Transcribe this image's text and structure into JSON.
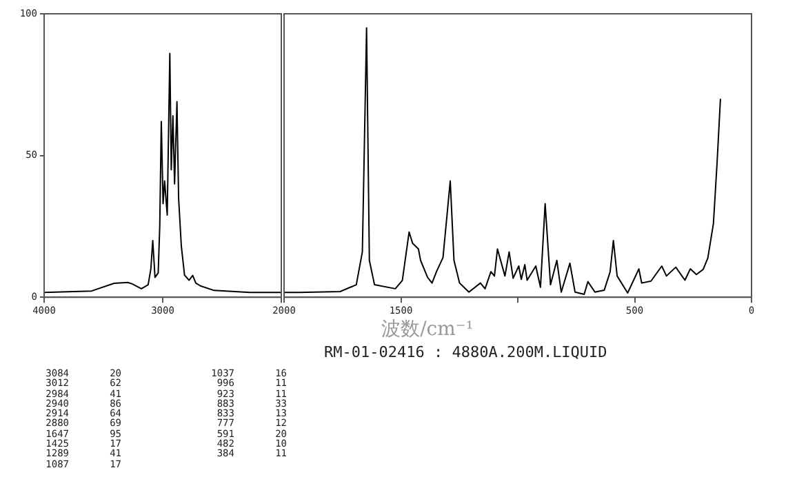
{
  "chart_data": [
    {
      "type": "line",
      "x": [
        4000,
        3600,
        3410,
        3295,
        3257,
        3180,
        3123,
        3100,
        3084,
        3065,
        3038,
        3025,
        3012,
        2997,
        2984,
        2962,
        2940,
        2928,
        2914,
        2900,
        2880,
        2866,
        2843,
        2816,
        2778,
        2747,
        2721,
        2682,
        2567,
        2264,
        2000
      ],
      "series": [
        {
          "color": "#000000",
          "values": [
            1.7,
            2.2,
            4.9,
            5.2,
            4.7,
            3,
            4.4,
            10,
            20,
            7,
            8.6,
            25,
            62,
            33,
            41,
            29,
            86,
            45,
            64,
            40,
            69,
            35,
            18,
            7.8,
            6,
            7.7,
            5,
            4,
            2.4,
            1.7,
            1.7
          ]
        }
      ],
      "xlim": [
        4000,
        2000
      ],
      "xticks": [
        4000,
        3000,
        {
          "value": 2000,
          "label": null
        }
      ],
      "ylim": [
        0,
        100
      ],
      "yticks": [
        0,
        50,
        100
      ],
      "grid": false,
      "legend": false,
      "marker": "none",
      "line_style": "solid"
    },
    {
      "type": "line",
      "xlabel": "波数/cm⁻¹",
      "annotations": [
        "RM-01-02416 : 4880A.200M.LIQUID",
        "3084 20",
        "3012 62",
        "2984 41",
        "2940 86",
        "2914 64",
        "2880 69",
        "1647 95",
        "1425 17",
        "1289 41",
        "1087 17",
        "1037 16",
        "996 11",
        "923 11",
        "883 33",
        "833 13",
        "777 12",
        "591 20",
        "482 10",
        "384 11"
      ],
      "x": [
        2000,
        1937,
        1760,
        1691,
        1665,
        1647,
        1635,
        1613,
        1524,
        1494,
        1465,
        1450,
        1425,
        1416,
        1386,
        1367,
        1347,
        1320,
        1289,
        1273,
        1249,
        1209,
        1160,
        1140,
        1115,
        1100,
        1087,
        1055,
        1037,
        1020,
        996,
        985,
        970,
        960,
        923,
        903,
        883,
        860,
        833,
        814,
        777,
        755,
        716,
        700,
        670,
        630,
        605,
        591,
        575,
        530,
        482,
        470,
        430,
        384,
        364,
        324,
        285,
        262,
        236,
        207,
        187,
        163,
        147,
        133
      ],
      "series": [
        {
          "color": "#000000",
          "values": [
            1.7,
            1.7,
            2,
            4.4,
            16,
            95,
            13,
            4.4,
            3,
            5.9,
            23,
            19,
            17,
            13,
            7,
            5,
            9.2,
            14,
            41,
            13,
            5,
            1.8,
            5,
            3,
            9,
            7.5,
            17,
            7.5,
            16,
            6.7,
            11,
            6.3,
            11.5,
            6,
            11,
            3.5,
            33,
            4.4,
            13,
            1.8,
            12,
            1.8,
            1,
            5.5,
            1.8,
            2.5,
            9,
            20,
            7.5,
            1.5,
            10,
            5,
            5.7,
            11,
            7.5,
            10.6,
            6,
            10,
            8,
            9.8,
            13.8,
            26,
            48,
            70
          ]
        }
      ],
      "xlim": [
        2000,
        0
      ],
      "xticks": [
        2000,
        1500,
        {
          "value": 1000,
          "label": null
        },
        500,
        0
      ],
      "ylim": [
        0,
        100
      ],
      "tick_labels": "x",
      "grid": false,
      "legend": false,
      "marker": "none",
      "line_style": "solid"
    }
  ]
}
